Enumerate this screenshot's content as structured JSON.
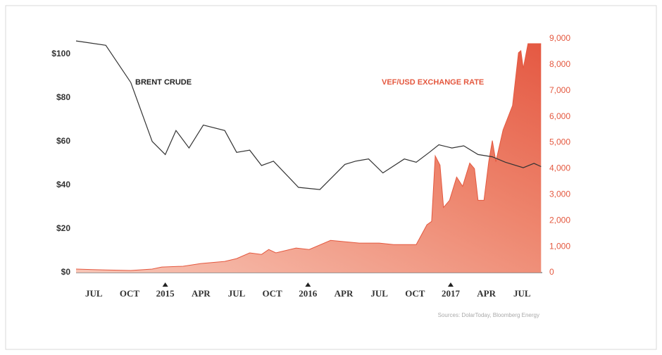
{
  "chart_data": {
    "type": "line",
    "annotations": [
      "BRENT CRUDE",
      "VEF/USD EXCHANGE RATE"
    ],
    "source": "Sources: DolarToday, Bloomberg Energy",
    "xlim": [
      -1.5,
      37.7
    ],
    "xticks": [
      {
        "value": 0,
        "label": "JUL"
      },
      {
        "value": 3,
        "label": "OCT"
      },
      {
        "value": 6,
        "label": "2015"
      },
      {
        "value": 9,
        "label": "APR"
      },
      {
        "value": 12,
        "label": "JUL"
      },
      {
        "value": 15,
        "label": "OCT"
      },
      {
        "value": 18,
        "label": "2016"
      },
      {
        "value": 21,
        "label": "APR"
      },
      {
        "value": 24,
        "label": "JUL"
      },
      {
        "value": 27,
        "label": "OCT"
      },
      {
        "value": 30,
        "label": "2017"
      },
      {
        "value": 33,
        "label": "APR"
      },
      {
        "value": 36,
        "label": "JUL"
      }
    ],
    "ylim": [
      0,
      107
    ],
    "yticks": [
      {
        "value": 0,
        "label": "$0"
      },
      {
        "value": 20,
        "label": "$20"
      },
      {
        "value": 40,
        "label": "$40"
      },
      {
        "value": 60,
        "label": "$60"
      },
      {
        "value": 80,
        "label": "$80"
      },
      {
        "value": 100,
        "label": "$100"
      }
    ],
    "y2lim": [
      0,
      9000
    ],
    "y2ticks": [
      0,
      {
        "value": 1000,
        "label": "1,000"
      },
      {
        "value": 2000,
        "label": "2,000"
      },
      {
        "value": 3000,
        "label": "3,000"
      },
      {
        "value": 4000,
        "label": "4,000"
      },
      {
        "value": 5000,
        "label": "5,000"
      },
      {
        "value": 6000,
        "label": "6,000"
      },
      {
        "value": 7000,
        "label": "7,000"
      },
      {
        "value": 8000,
        "label": "8,000"
      },
      {
        "value": 9000,
        "label": "9,000"
      }
    ],
    "series": [
      {
        "name": "BRENT CRUDE",
        "color": "#333333",
        "x": [
          -1.5,
          1,
          3.1,
          4.9,
          6,
          6.9,
          8,
          9.2,
          11,
          12,
          13.1,
          14.1,
          15.1,
          17.2,
          19,
          21.1,
          22,
          23.1,
          24.3,
          26.1,
          27.1,
          28.2,
          29,
          30.1,
          31.1,
          32.3,
          33.5,
          34.6,
          36.1,
          37,
          37.6
        ],
        "values": [
          106,
          104,
          87,
          60,
          54,
          65,
          57,
          67.5,
          65,
          55,
          56,
          49,
          51,
          39,
          38,
          49.5,
          51,
          52,
          45.6,
          52,
          50.5,
          55,
          58.5,
          57,
          58,
          54,
          53,
          50.5,
          48,
          50,
          48.5
        ]
      },
      {
        "name": "VEF/USD EXCHANGE RATE",
        "color": "#e4583f",
        "axis": "y2",
        "x": [
          -1.5,
          1,
          3.1,
          4.9,
          5.7,
          7.5,
          9,
          11,
          12,
          13.1,
          14.1,
          14.7,
          15.3,
          17,
          18.1,
          19.9,
          22.3,
          24,
          25.2,
          27.1,
          28,
          28.4,
          28.7,
          29.1,
          29.4,
          29.9,
          30.5,
          31,
          31.6,
          32,
          32.3,
          32.8,
          33.2,
          33.5,
          33.8,
          34.4,
          35.2,
          35.7,
          35.9,
          36.1,
          36.5,
          37.6
        ],
        "values": [
          135,
          100,
          80,
          135,
          215,
          245,
          350,
          430,
          540,
          760,
          700,
          890,
          760,
          945,
          890,
          1240,
          1135,
          1135,
          1080,
          1080,
          1840,
          1970,
          4490,
          4135,
          2510,
          2780,
          3675,
          3320,
          4215,
          4000,
          2780,
          2780,
          4270,
          5080,
          4270,
          5490,
          6430,
          8460,
          8540,
          7860,
          8810,
          8810
        ]
      }
    ]
  }
}
